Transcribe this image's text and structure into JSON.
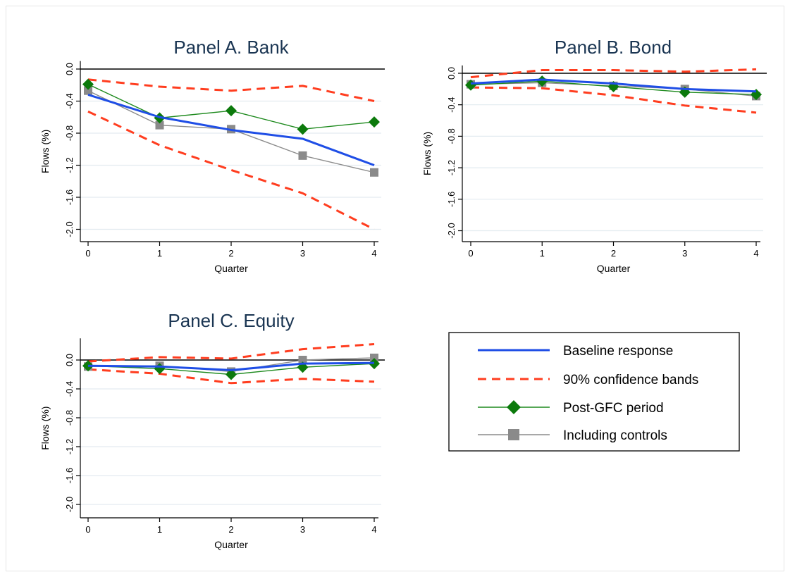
{
  "chart_data": [
    {
      "type": "line",
      "title": "Panel A. Bank",
      "xlabel": "Quarter",
      "ylabel": "Flows (%)",
      "x": [
        0,
        1,
        2,
        3,
        4
      ],
      "xticks": [
        "0",
        "1",
        "2",
        "3",
        "4"
      ],
      "yticks": [
        "0.0",
        "-0.4",
        "-0.8",
        "-1.2",
        "-1.6",
        "-2.0"
      ],
      "ylim": [
        -2.0,
        0.1
      ],
      "grid": true,
      "series": [
        {
          "name": "Baseline response",
          "values": [
            -0.32,
            -0.6,
            -0.76,
            -0.87,
            -1.2
          ]
        },
        {
          "name": "90% confidence bands",
          "values": [
            -0.13,
            -0.22,
            -0.27,
            -0.21,
            -0.4
          ]
        },
        {
          "name": "90% confidence bands",
          "values": [
            -0.53,
            -0.95,
            -1.26,
            -1.55,
            -2.0
          ]
        },
        {
          "name": "Post-GFC period",
          "values": [
            -0.19,
            -0.61,
            -0.52,
            -0.75,
            -0.66
          ]
        },
        {
          "name": "Including controls",
          "values": [
            -0.27,
            -0.7,
            -0.75,
            -1.08,
            -1.29
          ]
        }
      ]
    },
    {
      "type": "line",
      "title": "Panel B. Bond",
      "xlabel": "Quarter",
      "ylabel": "Flows (%)",
      "x": [
        0,
        1,
        2,
        3,
        4
      ],
      "xticks": [
        "0",
        "1",
        "2",
        "3",
        "4"
      ],
      "yticks": [
        "0.0",
        "-0.4",
        "-0.8",
        "-1.2",
        "-1.6",
        "-2.0"
      ],
      "ylim": [
        -2.0,
        0.1
      ],
      "grid": true,
      "series": [
        {
          "name": "Baseline response",
          "values": [
            -0.13,
            -0.08,
            -0.13,
            -0.2,
            -0.23
          ]
        },
        {
          "name": "90% confidence bands",
          "values": [
            -0.05,
            0.04,
            0.04,
            0.02,
            0.05
          ]
        },
        {
          "name": "90% confidence bands",
          "values": [
            -0.18,
            -0.19,
            -0.28,
            -0.41,
            -0.5
          ]
        },
        {
          "name": "Post-GFC period",
          "values": [
            -0.15,
            -0.1,
            -0.17,
            -0.24,
            -0.27
          ]
        },
        {
          "name": "Including controls",
          "values": [
            -0.14,
            -0.12,
            -0.16,
            -0.2,
            -0.29
          ]
        }
      ]
    },
    {
      "type": "line",
      "title": "Panel C. Equity",
      "xlabel": "Quarter",
      "ylabel": "Flows (%)",
      "x": [
        0,
        1,
        2,
        3,
        4
      ],
      "xticks": [
        "0",
        "1",
        "2",
        "3",
        "4"
      ],
      "yticks": [
        "0.0",
        "-0.4",
        "-0.8",
        "-1.2",
        "-1.6",
        "-2.0"
      ],
      "ylim": [
        -2.0,
        0.3
      ],
      "grid": true,
      "series": [
        {
          "name": "Baseline response",
          "values": [
            -0.08,
            -0.09,
            -0.14,
            -0.05,
            -0.04
          ]
        },
        {
          "name": "90% confidence bands",
          "values": [
            -0.02,
            0.04,
            0.02,
            0.15,
            0.22
          ]
        },
        {
          "name": "90% confidence bands",
          "values": [
            -0.13,
            -0.19,
            -0.32,
            -0.26,
            -0.3
          ]
        },
        {
          "name": "Post-GFC period",
          "values": [
            -0.08,
            -0.12,
            -0.2,
            -0.1,
            -0.05
          ]
        },
        {
          "name": "Including controls",
          "values": [
            -0.09,
            -0.08,
            -0.16,
            0.0,
            0.03
          ]
        }
      ]
    }
  ],
  "legend": {
    "placement": "bottom-right",
    "items": [
      {
        "label": "Baseline response",
        "color": "#1f4ee6",
        "style": "solid"
      },
      {
        "label": "90% confidence bands",
        "color": "#ff3d1f",
        "style": "dashed"
      },
      {
        "label": "Post-GFC period",
        "color": "#1e8a1e",
        "marker": "diamond"
      },
      {
        "label": "Including controls",
        "color": "#8c8c8c",
        "marker": "square"
      }
    ]
  },
  "colors": {
    "baseline": "#1f4ee6",
    "bands": "#ff3d1f",
    "postgfc": "#1e8a1e",
    "postgfc_marker": "#0c7a0c",
    "controls": "#8c8c8c",
    "controls_marker": "#8a8a8a",
    "grid": "#e3ebf0"
  }
}
